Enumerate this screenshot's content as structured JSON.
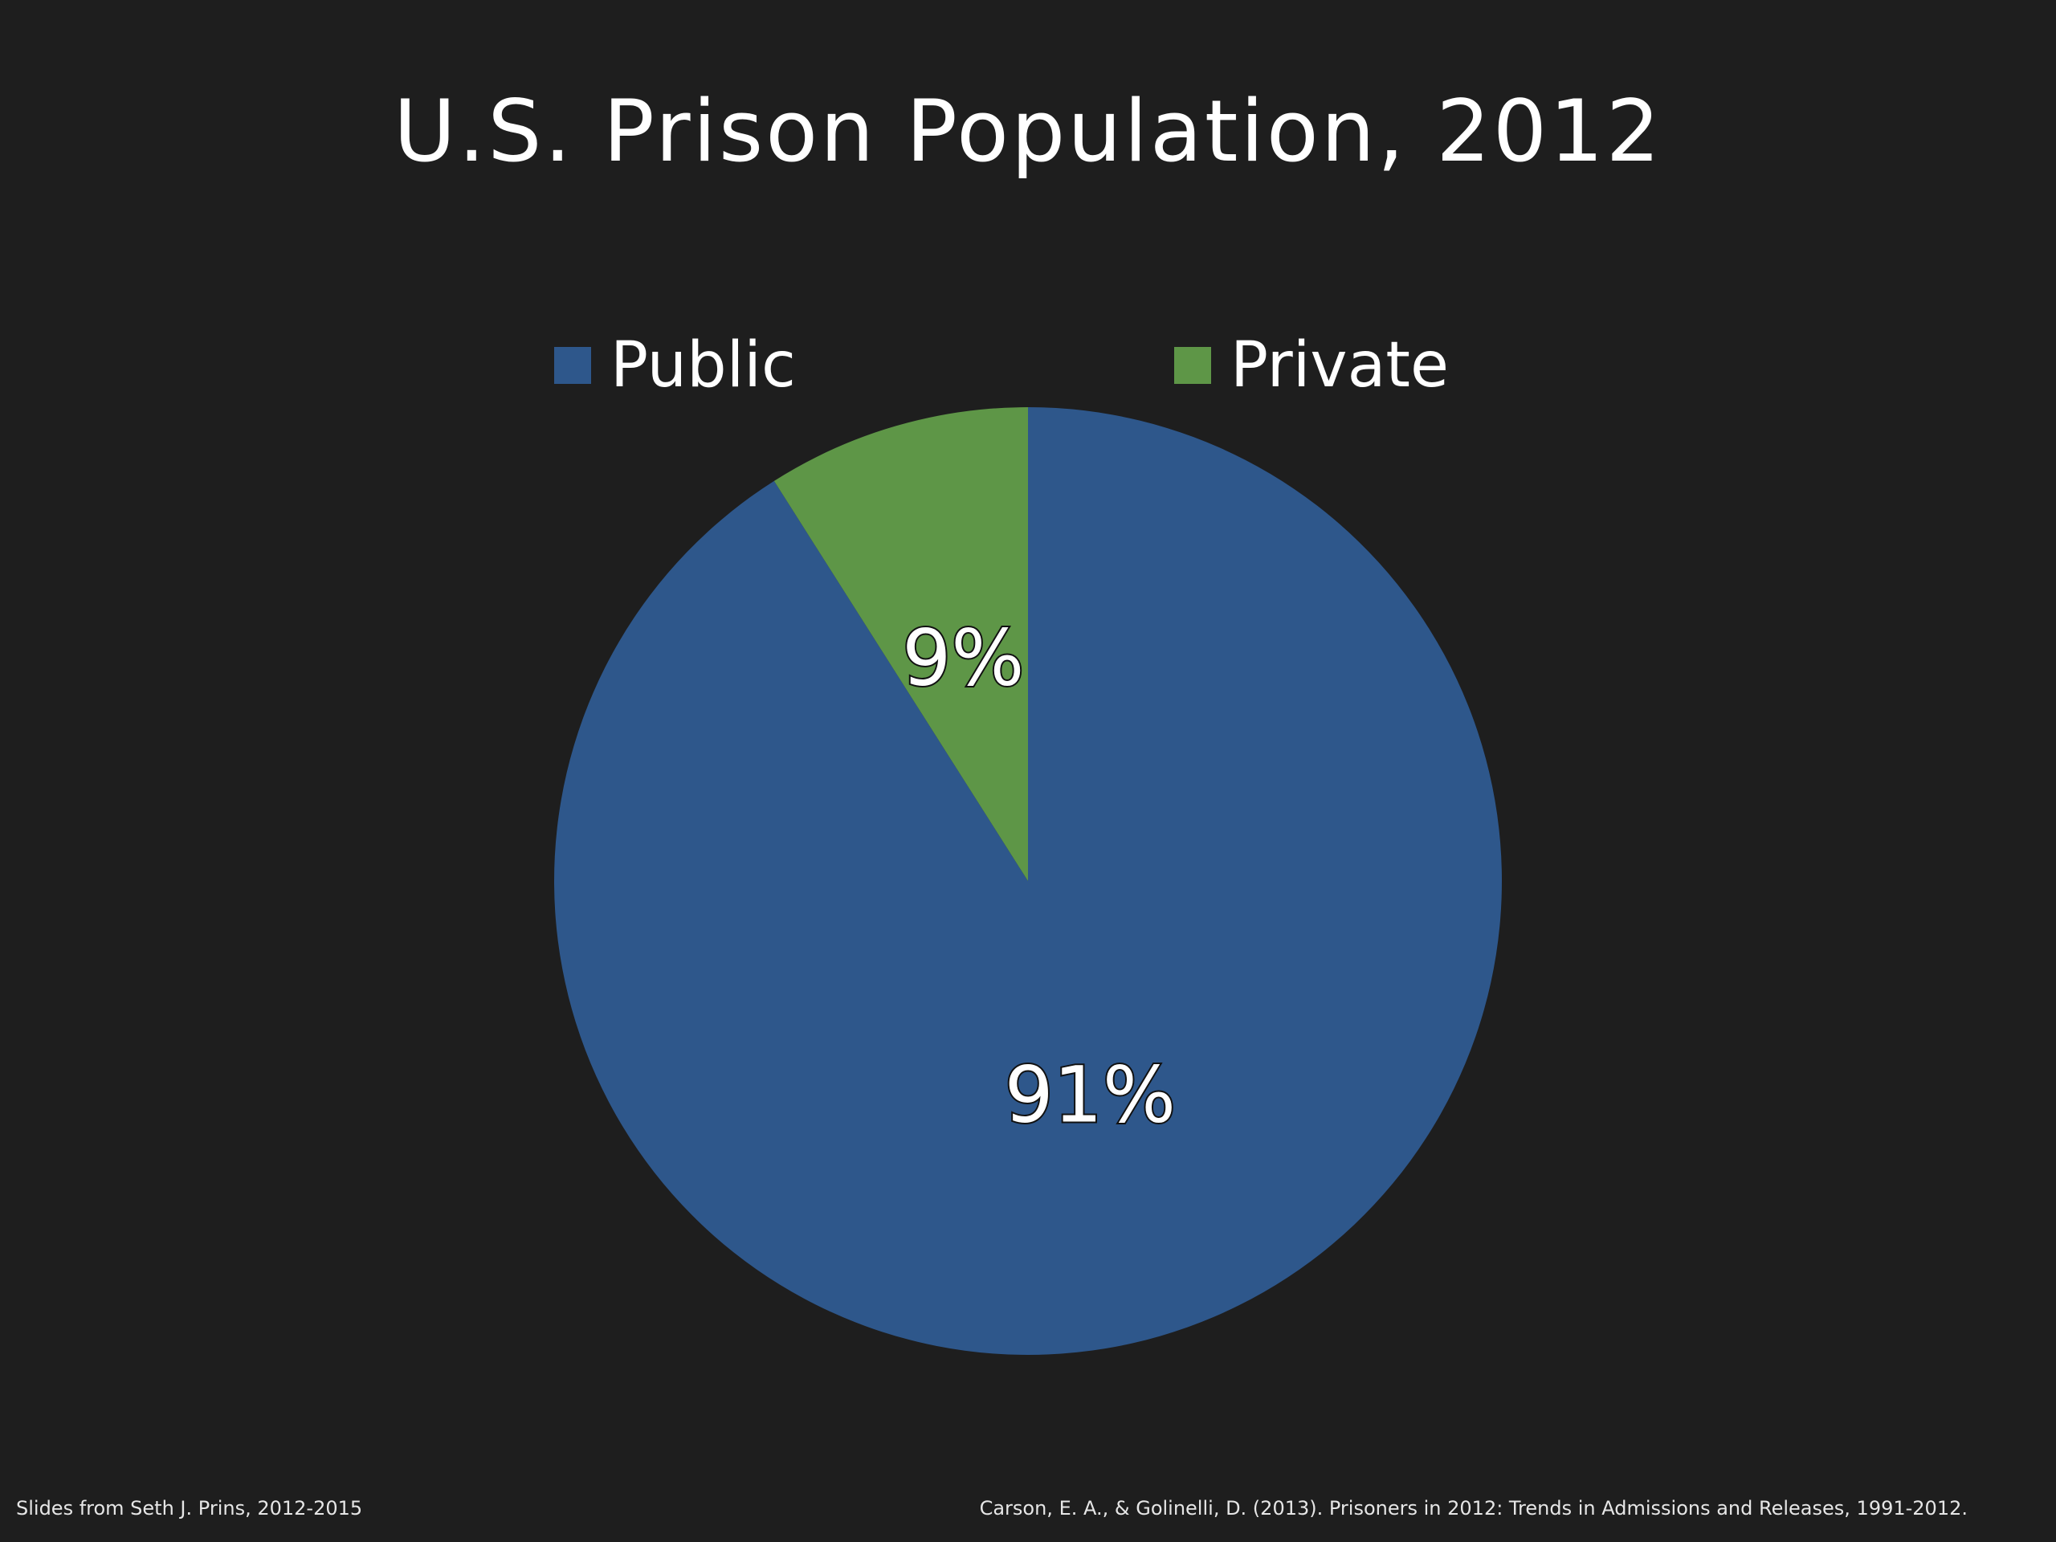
{
  "slide": {
    "title": "U.S. Prison Population, 2012",
    "footer_left": "Slides from Seth J. Prins, 2012-2015",
    "footer_right": "Carson, E. A., & Golinelli, D. (2013). Prisoners in 2012: Trends in Admissions and Releases, 1991-2012."
  },
  "chart_data": {
    "type": "pie",
    "title": "U.S. Prison Population, 2012",
    "categories": [
      "Public",
      "Private"
    ],
    "values": [
      91,
      9
    ],
    "data_labels": [
      "91%",
      "9%"
    ],
    "colors": [
      "#2e578b",
      "#5e9647"
    ],
    "legend_position": "top",
    "start_angle": "12 o'clock",
    "direction": "clockwise"
  }
}
